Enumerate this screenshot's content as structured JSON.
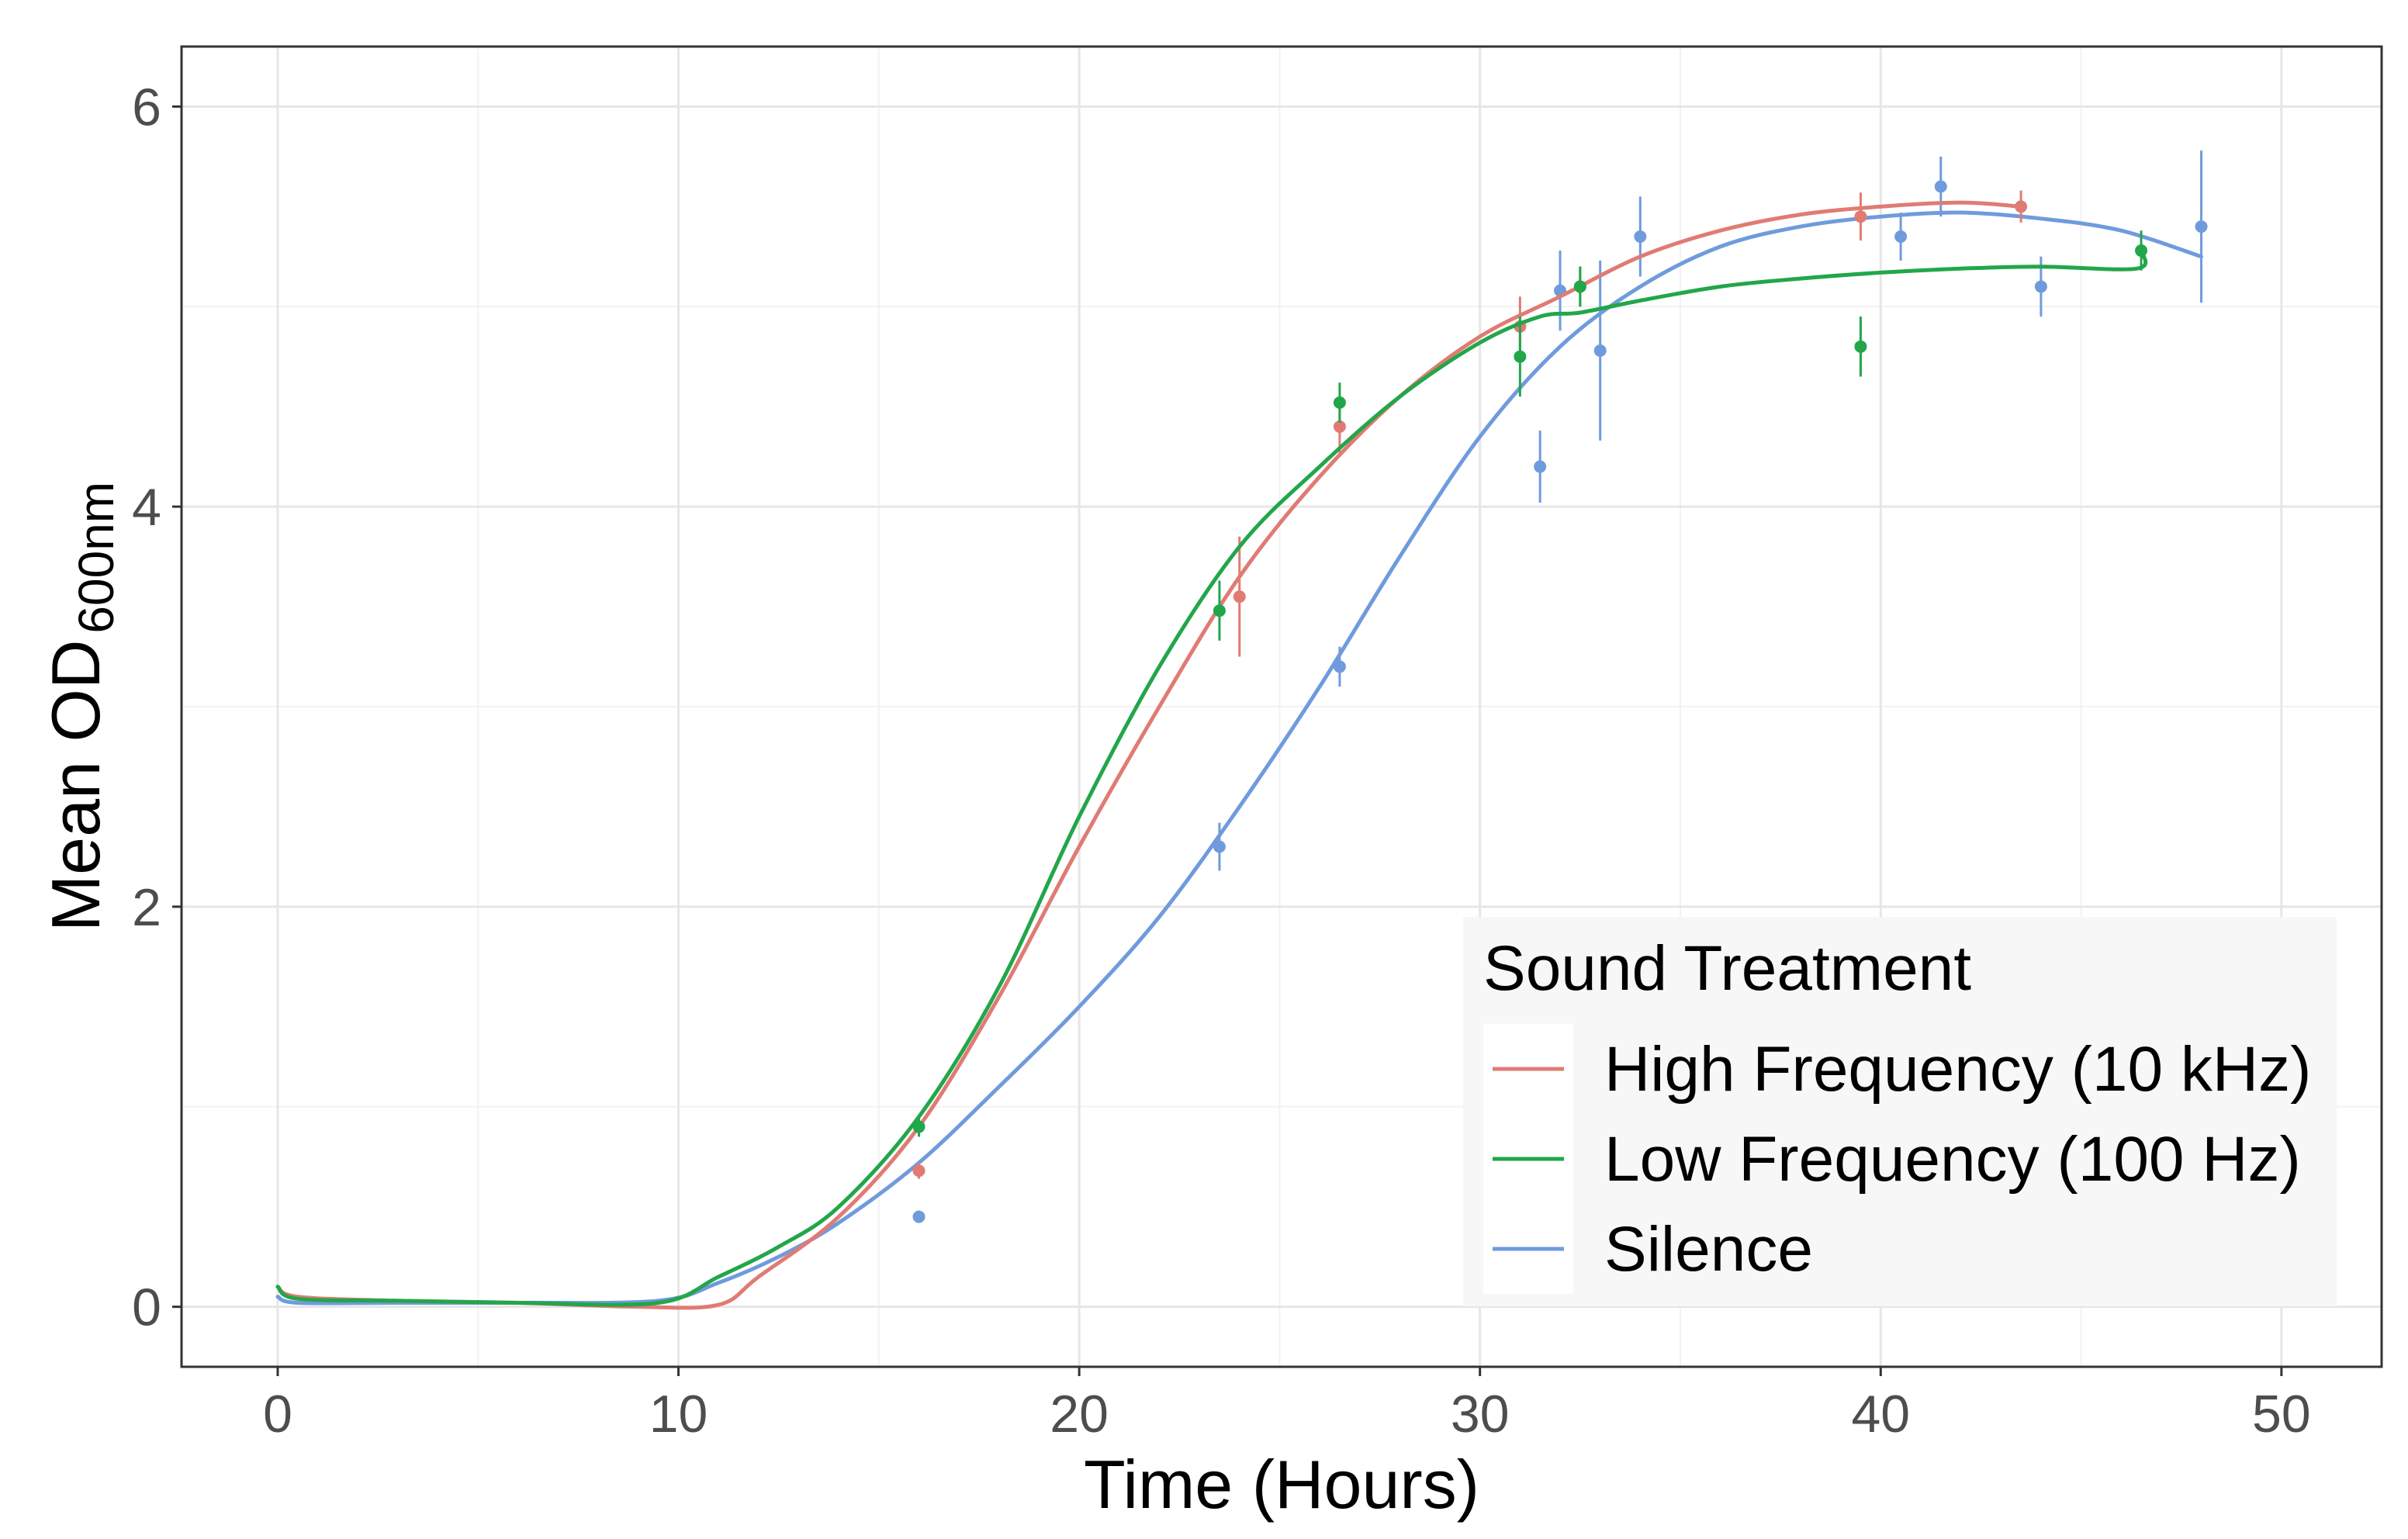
{
  "chart_data": {
    "type": "line",
    "title": "",
    "xlabel": "Time (Hours)",
    "ylabel": {
      "main": "Mean OD",
      "subscript": "600nm"
    },
    "xlim": [
      -2.4,
      52.5
    ],
    "ylim": [
      -0.3,
      6.3
    ],
    "x_ticks": [
      0,
      10,
      20,
      30,
      40,
      50
    ],
    "y_ticks": [
      0,
      2,
      4,
      6
    ],
    "grid": true,
    "legend": {
      "title": "Sound Treatment",
      "position": "bottom-right"
    },
    "series": [
      {
        "name": "High Frequency (10 kHz)",
        "color": "#E07B74",
        "curve_x": [
          0,
          0.5,
          3,
          6,
          9,
          11,
          12,
          14,
          16,
          18,
          20,
          22,
          24,
          26,
          28,
          30,
          32,
          34,
          36,
          38,
          40,
          42,
          43.5
        ],
        "curve_y": [
          0.1,
          0.05,
          0.03,
          0.02,
          0.0,
          0.01,
          0.15,
          0.45,
          0.9,
          1.55,
          2.3,
          3.0,
          3.65,
          4.15,
          4.55,
          4.85,
          5.05,
          5.25,
          5.38,
          5.46,
          5.5,
          5.52,
          5.5
        ],
        "points": [
          {
            "x": 16,
            "y": 0.68,
            "err": 0.04
          },
          {
            "x": 24,
            "y": 3.55,
            "err": 0.3
          },
          {
            "x": 26.5,
            "y": 4.4,
            "err": 0.15
          },
          {
            "x": 31,
            "y": 4.9,
            "err": 0.15
          },
          {
            "x": 32.5,
            "y": 5.1,
            "err": 0.1
          },
          {
            "x": 39.5,
            "y": 5.45,
            "err": 0.12
          },
          {
            "x": 43.5,
            "y": 5.5,
            "err": 0.08
          }
        ]
      },
      {
        "name": "Low Frequency (100 Hz)",
        "color": "#22A64A",
        "curve_x": [
          0,
          0.5,
          3,
          6,
          9.5,
          11,
          12.5,
          14,
          16,
          18,
          20,
          22,
          24,
          26,
          28,
          30,
          31.5,
          32.5,
          34,
          36,
          38,
          40,
          42,
          44,
          46.4,
          46.5
        ],
        "curve_y": [
          0.1,
          0.04,
          0.03,
          0.02,
          0.02,
          0.15,
          0.3,
          0.5,
          0.95,
          1.6,
          2.45,
          3.2,
          3.8,
          4.2,
          4.55,
          4.82,
          4.95,
          4.97,
          5.03,
          5.1,
          5.14,
          5.17,
          5.19,
          5.2,
          5.19,
          5.28
        ],
        "points": [
          {
            "x": 16,
            "y": 0.9,
            "err": 0.05
          },
          {
            "x": 23.5,
            "y": 3.48,
            "err": 0.15
          },
          {
            "x": 26.5,
            "y": 4.52,
            "err": 0.1
          },
          {
            "x": 31,
            "y": 4.75,
            "err": 0.2
          },
          {
            "x": 32.5,
            "y": 5.1,
            "err": 0.1
          },
          {
            "x": 39.5,
            "y": 4.8,
            "err": 0.15
          },
          {
            "x": 46.5,
            "y": 5.28,
            "err": 0.1
          }
        ]
      },
      {
        "name": "Silence",
        "color": "#6F9BDD",
        "curve_x": [
          0,
          0.5,
          3,
          6,
          9.5,
          11,
          12.5,
          14,
          16,
          18,
          20,
          22,
          24,
          26,
          28,
          30,
          32,
          34,
          36,
          38,
          40,
          42,
          44,
          46,
          48
        ],
        "curve_y": [
          0.05,
          0.02,
          0.02,
          0.02,
          0.03,
          0.12,
          0.25,
          0.42,
          0.72,
          1.1,
          1.5,
          1.95,
          2.5,
          3.1,
          3.75,
          4.35,
          4.8,
          5.1,
          5.3,
          5.4,
          5.45,
          5.47,
          5.44,
          5.38,
          5.25
        ],
        "points": [
          {
            "x": 16,
            "y": 0.45,
            "err": 0.03
          },
          {
            "x": 23.5,
            "y": 2.3,
            "err": 0.12
          },
          {
            "x": 26.5,
            "y": 3.2,
            "err": 0.1
          },
          {
            "x": 31.5,
            "y": 4.2,
            "err": 0.18
          },
          {
            "x": 32,
            "y": 5.08,
            "err": 0.2
          },
          {
            "x": 33,
            "y": 4.78,
            "err": 0.45
          },
          {
            "x": 34,
            "y": 5.35,
            "err": 0.2
          },
          {
            "x": 40.5,
            "y": 5.35,
            "err": 0.12
          },
          {
            "x": 41.5,
            "y": 5.6,
            "err": 0.15
          },
          {
            "x": 44,
            "y": 5.1,
            "err": 0.15
          },
          {
            "x": 48,
            "y": 5.4,
            "err": 0.38
          }
        ]
      }
    ]
  }
}
